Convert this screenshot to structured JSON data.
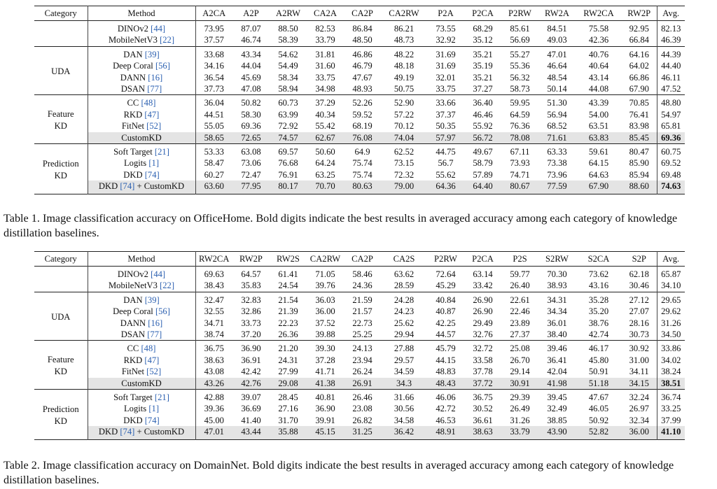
{
  "tables": [
    {
      "caption": "Table 1. Image classification accuracy on OfficeHome. Bold digits indicate the best results in averaged accuracy among each category of knowledge distillation baselines.",
      "header": [
        "Category",
        "Method",
        "A2CA",
        "A2P",
        "A2RW",
        "CA2A",
        "CA2P",
        "CA2RW",
        "P2A",
        "P2CA",
        "P2RW",
        "RW2A",
        "RW2CA",
        "RW2P",
        "Avg."
      ],
      "groups": [
        {
          "category": [],
          "rows": [
            {
              "method": "DINOv2 ",
              "cite": "[44]",
              "values": [
                "73.95",
                "87.07",
                "88.50",
                "82.53",
                "86.84",
                "86.21",
                "73.55",
                "68.29",
                "85.61",
                "84.51",
                "75.58",
                "92.95",
                "82.13"
              ]
            },
            {
              "method": "MobileNetV3 ",
              "cite": "[22]",
              "values": [
                "37.57",
                "46.74",
                "58.39",
                "33.79",
                "48.50",
                "48.73",
                "32.92",
                "35.12",
                "56.69",
                "49.03",
                "42.36",
                "66.84",
                "46.39"
              ]
            }
          ]
        },
        {
          "category": [
            "UDA"
          ],
          "rows": [
            {
              "method": "DAN ",
              "cite": "[39]",
              "values": [
                "33.68",
                "43.34",
                "54.62",
                "31.81",
                "46.86",
                "48.22",
                "31.69",
                "35.21",
                "55.27",
                "47.01",
                "40.76",
                "64.16",
                "44.39"
              ]
            },
            {
              "method": "Deep Coral ",
              "cite": "[56]",
              "values": [
                "34.16",
                "44.04",
                "54.49",
                "31.60",
                "46.79",
                "48.18",
                "31.69",
                "35.19",
                "55.36",
                "46.64",
                "40.64",
                "64.02",
                "44.40"
              ]
            },
            {
              "method": "DANN ",
              "cite": "[16]",
              "values": [
                "36.54",
                "45.69",
                "58.34",
                "33.75",
                "47.67",
                "49.19",
                "32.01",
                "35.21",
                "56.32",
                "48.54",
                "43.14",
                "66.86",
                "46.11"
              ]
            },
            {
              "method": "DSAN ",
              "cite": "[77]",
              "values": [
                "37.73",
                "47.08",
                "58.94",
                "34.98",
                "48.93",
                "50.75",
                "33.75",
                "37.27",
                "58.73",
                "50.14",
                "44.08",
                "67.90",
                "47.52"
              ]
            }
          ]
        },
        {
          "category": [
            "Feature",
            "KD"
          ],
          "rows": [
            {
              "method": "CC ",
              "cite": "[48]",
              "values": [
                "36.04",
                "50.82",
                "60.73",
                "37.29",
                "52.26",
                "52.90",
                "33.66",
                "36.40",
                "59.95",
                "51.30",
                "43.39",
                "70.85",
                "48.80"
              ]
            },
            {
              "method": "RKD ",
              "cite": "[47]",
              "values": [
                "44.51",
                "58.30",
                "63.99",
                "40.34",
                "59.52",
                "57.22",
                "37.37",
                "46.46",
                "64.59",
                "56.94",
                "54.00",
                "76.41",
                "54.97"
              ]
            },
            {
              "method": "FitNet ",
              "cite": "[52]",
              "values": [
                "55.05",
                "69.36",
                "72.92",
                "55.42",
                "68.19",
                "70.12",
                "50.35",
                "55.92",
                "76.36",
                "68.52",
                "63.51",
                "83.98",
                "65.81"
              ]
            },
            {
              "method": "CustomKD",
              "cite": "",
              "highlight": true,
              "bold_avg": true,
              "values": [
                "58.65",
                "72.65",
                "74.57",
                "62.67",
                "76.08",
                "74.04",
                "57.97",
                "56.72",
                "78.08",
                "71.61",
                "63.83",
                "85.45",
                "69.36"
              ]
            }
          ]
        },
        {
          "category": [
            "Prediction",
            "KD"
          ],
          "rows": [
            {
              "method": "Soft Target ",
              "cite": "[21]",
              "values": [
                "53.33",
                "63.08",
                "69.57",
                "50.60",
                "64.9",
                "62.52",
                "44.75",
                "49.67",
                "67.11",
                "63.33",
                "59.61",
                "80.47",
                "60.75"
              ]
            },
            {
              "method": "Logits ",
              "cite": "[1]",
              "values": [
                "58.47",
                "73.06",
                "76.68",
                "64.24",
                "75.74",
                "73.15",
                "56.7",
                "58.79",
                "73.93",
                "73.38",
                "64.15",
                "85.90",
                "69.52"
              ]
            },
            {
              "method": "DKD ",
              "cite": "[74]",
              "values": [
                "60.27",
                "72.47",
                "76.91",
                "63.25",
                "75.74",
                "72.32",
                "55.62",
                "57.89",
                "74.71",
                "73.96",
                "64.63",
                "85.94",
                "69.48"
              ]
            },
            {
              "method": "DKD ",
              "cite": "[74]",
              "suffix": " + CustomKD",
              "highlight": true,
              "bold_avg": true,
              "values": [
                "63.60",
                "77.95",
                "80.17",
                "70.70",
                "80.63",
                "79.00",
                "64.36",
                "64.40",
                "80.67",
                "77.59",
                "67.90",
                "88.60",
                "74.63"
              ]
            }
          ]
        }
      ]
    },
    {
      "caption": "Table 2. Image classification accuracy on DomainNet. Bold digits indicate the best results in averaged accuracy among each category of knowledge distillation baselines.",
      "header": [
        "Category",
        "Method",
        "RW2CA",
        "RW2P",
        "RW2S",
        "CA2RW",
        "CA2P",
        "CA2S",
        "P2RW",
        "P2CA",
        "P2S",
        "S2RW",
        "S2CA",
        "S2P",
        "Avg."
      ],
      "groups": [
        {
          "category": [],
          "rows": [
            {
              "method": "DINOv2 ",
              "cite": "[44]",
              "values": [
                "69.63",
                "64.57",
                "61.41",
                "71.05",
                "58.46",
                "63.62",
                "72.64",
                "63.14",
                "59.77",
                "70.30",
                "73.62",
                "62.18",
                "65.87"
              ]
            },
            {
              "method": "MobileNetV3 ",
              "cite": "[22]",
              "values": [
                "38.43",
                "35.83",
                "24.54",
                "39.76",
                "24.36",
                "28.59",
                "45.29",
                "33.42",
                "26.40",
                "38.93",
                "43.16",
                "30.46",
                "34.10"
              ]
            }
          ]
        },
        {
          "category": [
            "UDA"
          ],
          "rows": [
            {
              "method": "DAN ",
              "cite": "[39]",
              "values": [
                "32.47",
                "32.83",
                "21.54",
                "36.03",
                "21.59",
                "24.28",
                "40.84",
                "26.90",
                "22.61",
                "34.31",
                "35.28",
                "27.12",
                "29.65"
              ]
            },
            {
              "method": "Deep Coral ",
              "cite": "[56]",
              "values": [
                "32.55",
                "32.86",
                "21.39",
                "36.00",
                "21.57",
                "24.23",
                "40.87",
                "26.90",
                "22.46",
                "34.34",
                "35.20",
                "27.07",
                "29.62"
              ]
            },
            {
              "method": "DANN ",
              "cite": "[16]",
              "values": [
                "34.71",
                "33.73",
                "22.23",
                "37.52",
                "22.73",
                "25.62",
                "42.25",
                "29.49",
                "23.89",
                "36.01",
                "38.76",
                "28.16",
                "31.26"
              ]
            },
            {
              "method": "DSAN ",
              "cite": "[77]",
              "values": [
                "38.74",
                "37.20",
                "26.36",
                "39.88",
                "25.25",
                "29.94",
                "44.57",
                "32.76",
                "27.37",
                "38.40",
                "42.74",
                "30.73",
                "34.50"
              ]
            }
          ]
        },
        {
          "category": [
            "Feature",
            "KD"
          ],
          "rows": [
            {
              "method": "CC ",
              "cite": "[48]",
              "values": [
                "36.75",
                "36.90",
                "21.20",
                "39.30",
                "24.13",
                "27.88",
                "45.79",
                "32.72",
                "25.08",
                "39.46",
                "46.17",
                "30.92",
                "33.86"
              ]
            },
            {
              "method": "RKD ",
              "cite": "[47]",
              "values": [
                "38.63",
                "36.91",
                "24.31",
                "37.28",
                "23.94",
                "29.57",
                "44.15",
                "33.58",
                "26.70",
                "36.41",
                "45.80",
                "31.00",
                "34.02"
              ]
            },
            {
              "method": "FitNet ",
              "cite": "[52]",
              "values": [
                "43.08",
                "42.42",
                "27.99",
                "41.71",
                "26.24",
                "34.59",
                "48.83",
                "37.78",
                "29.14",
                "42.04",
                "50.91",
                "34.11",
                "38.24"
              ]
            },
            {
              "method": "CustomKD",
              "cite": "",
              "highlight": true,
              "bold_avg": true,
              "values": [
                "43.26",
                "42.76",
                "29.08",
                "41.38",
                "26.91",
                "34.3",
                "48.43",
                "37.72",
                "30.91",
                "41.98",
                "51.18",
                "34.15",
                "38.51"
              ]
            }
          ]
        },
        {
          "category": [
            "Prediction",
            "KD"
          ],
          "rows": [
            {
              "method": "Soft Target ",
              "cite": "[21]",
              "values": [
                "42.88",
                "39.07",
                "28.45",
                "40.81",
                "26.46",
                "31.66",
                "46.06",
                "36.75",
                "29.39",
                "39.45",
                "47.67",
                "32.24",
                "36.74"
              ]
            },
            {
              "method": "Logits ",
              "cite": "[1]",
              "values": [
                "39.36",
                "36.69",
                "27.16",
                "36.90",
                "23.08",
                "30.56",
                "42.72",
                "30.52",
                "26.49",
                "32.49",
                "46.05",
                "26.97",
                "33.25"
              ]
            },
            {
              "method": "DKD ",
              "cite": "[74]",
              "values": [
                "45.00",
                "41.40",
                "31.70",
                "39.91",
                "26.82",
                "34.58",
                "46.53",
                "36.61",
                "31.26",
                "38.85",
                "50.92",
                "32.34",
                "37.99"
              ]
            },
            {
              "method": "DKD ",
              "cite": "[74]",
              "suffix": " + CustomKD",
              "highlight": true,
              "bold_avg": true,
              "values": [
                "47.01",
                "43.44",
                "35.88",
                "45.15",
                "31.25",
                "36.42",
                "48.91",
                "38.63",
                "33.79",
                "43.90",
                "52.82",
                "36.00",
                "41.10"
              ]
            }
          ]
        }
      ]
    }
  ]
}
